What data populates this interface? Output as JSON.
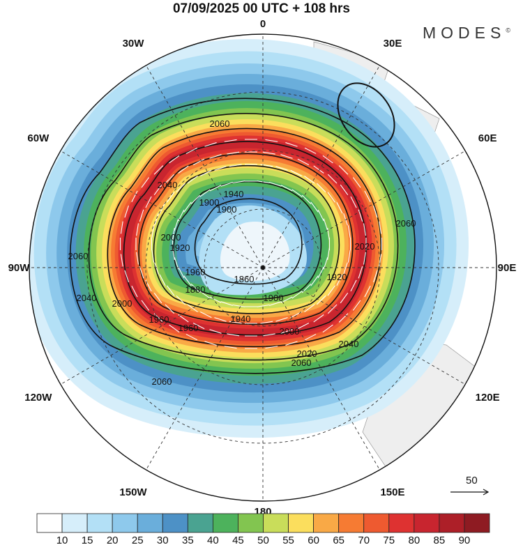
{
  "title": "07/09/2025  00 UTC  + 108 hrs",
  "logo": "MODES",
  "logo_mark": "©",
  "longitude_labels": [
    "0",
    "30E",
    "60E",
    "90E",
    "120E",
    "150E",
    "180",
    "150W",
    "120W",
    "90W",
    "60W",
    "30W"
  ],
  "contour_labels": [
    "2060",
    "2040",
    "2000",
    "1960",
    "1940",
    "1900",
    "1860",
    "1880",
    "1920",
    "1900",
    "1940",
    "1960",
    "2000",
    "2020",
    "2040",
    "2060",
    "2060",
    "2060",
    "2040",
    "2020",
    "1920",
    "2000",
    "1960",
    "1900",
    "2060"
  ],
  "vector_scale": {
    "label": "50"
  },
  "colorbar": {
    "labels": [
      "10",
      "15",
      "20",
      "25",
      "30",
      "35",
      "40",
      "45",
      "50",
      "55",
      "60",
      "65",
      "70",
      "75",
      "80",
      "85",
      "90"
    ],
    "colors": [
      "#ffffff",
      "#d6eefa",
      "#b3e0f6",
      "#8ec9ec",
      "#6aaedb",
      "#4d91c6",
      "#4aa391",
      "#4db25c",
      "#82c550",
      "#c9dd5a",
      "#fbde5d",
      "#f9a946",
      "#f67b33",
      "#ee5a30",
      "#de3231",
      "#c8252f",
      "#ad1f28",
      "#8e1b22"
    ]
  }
}
